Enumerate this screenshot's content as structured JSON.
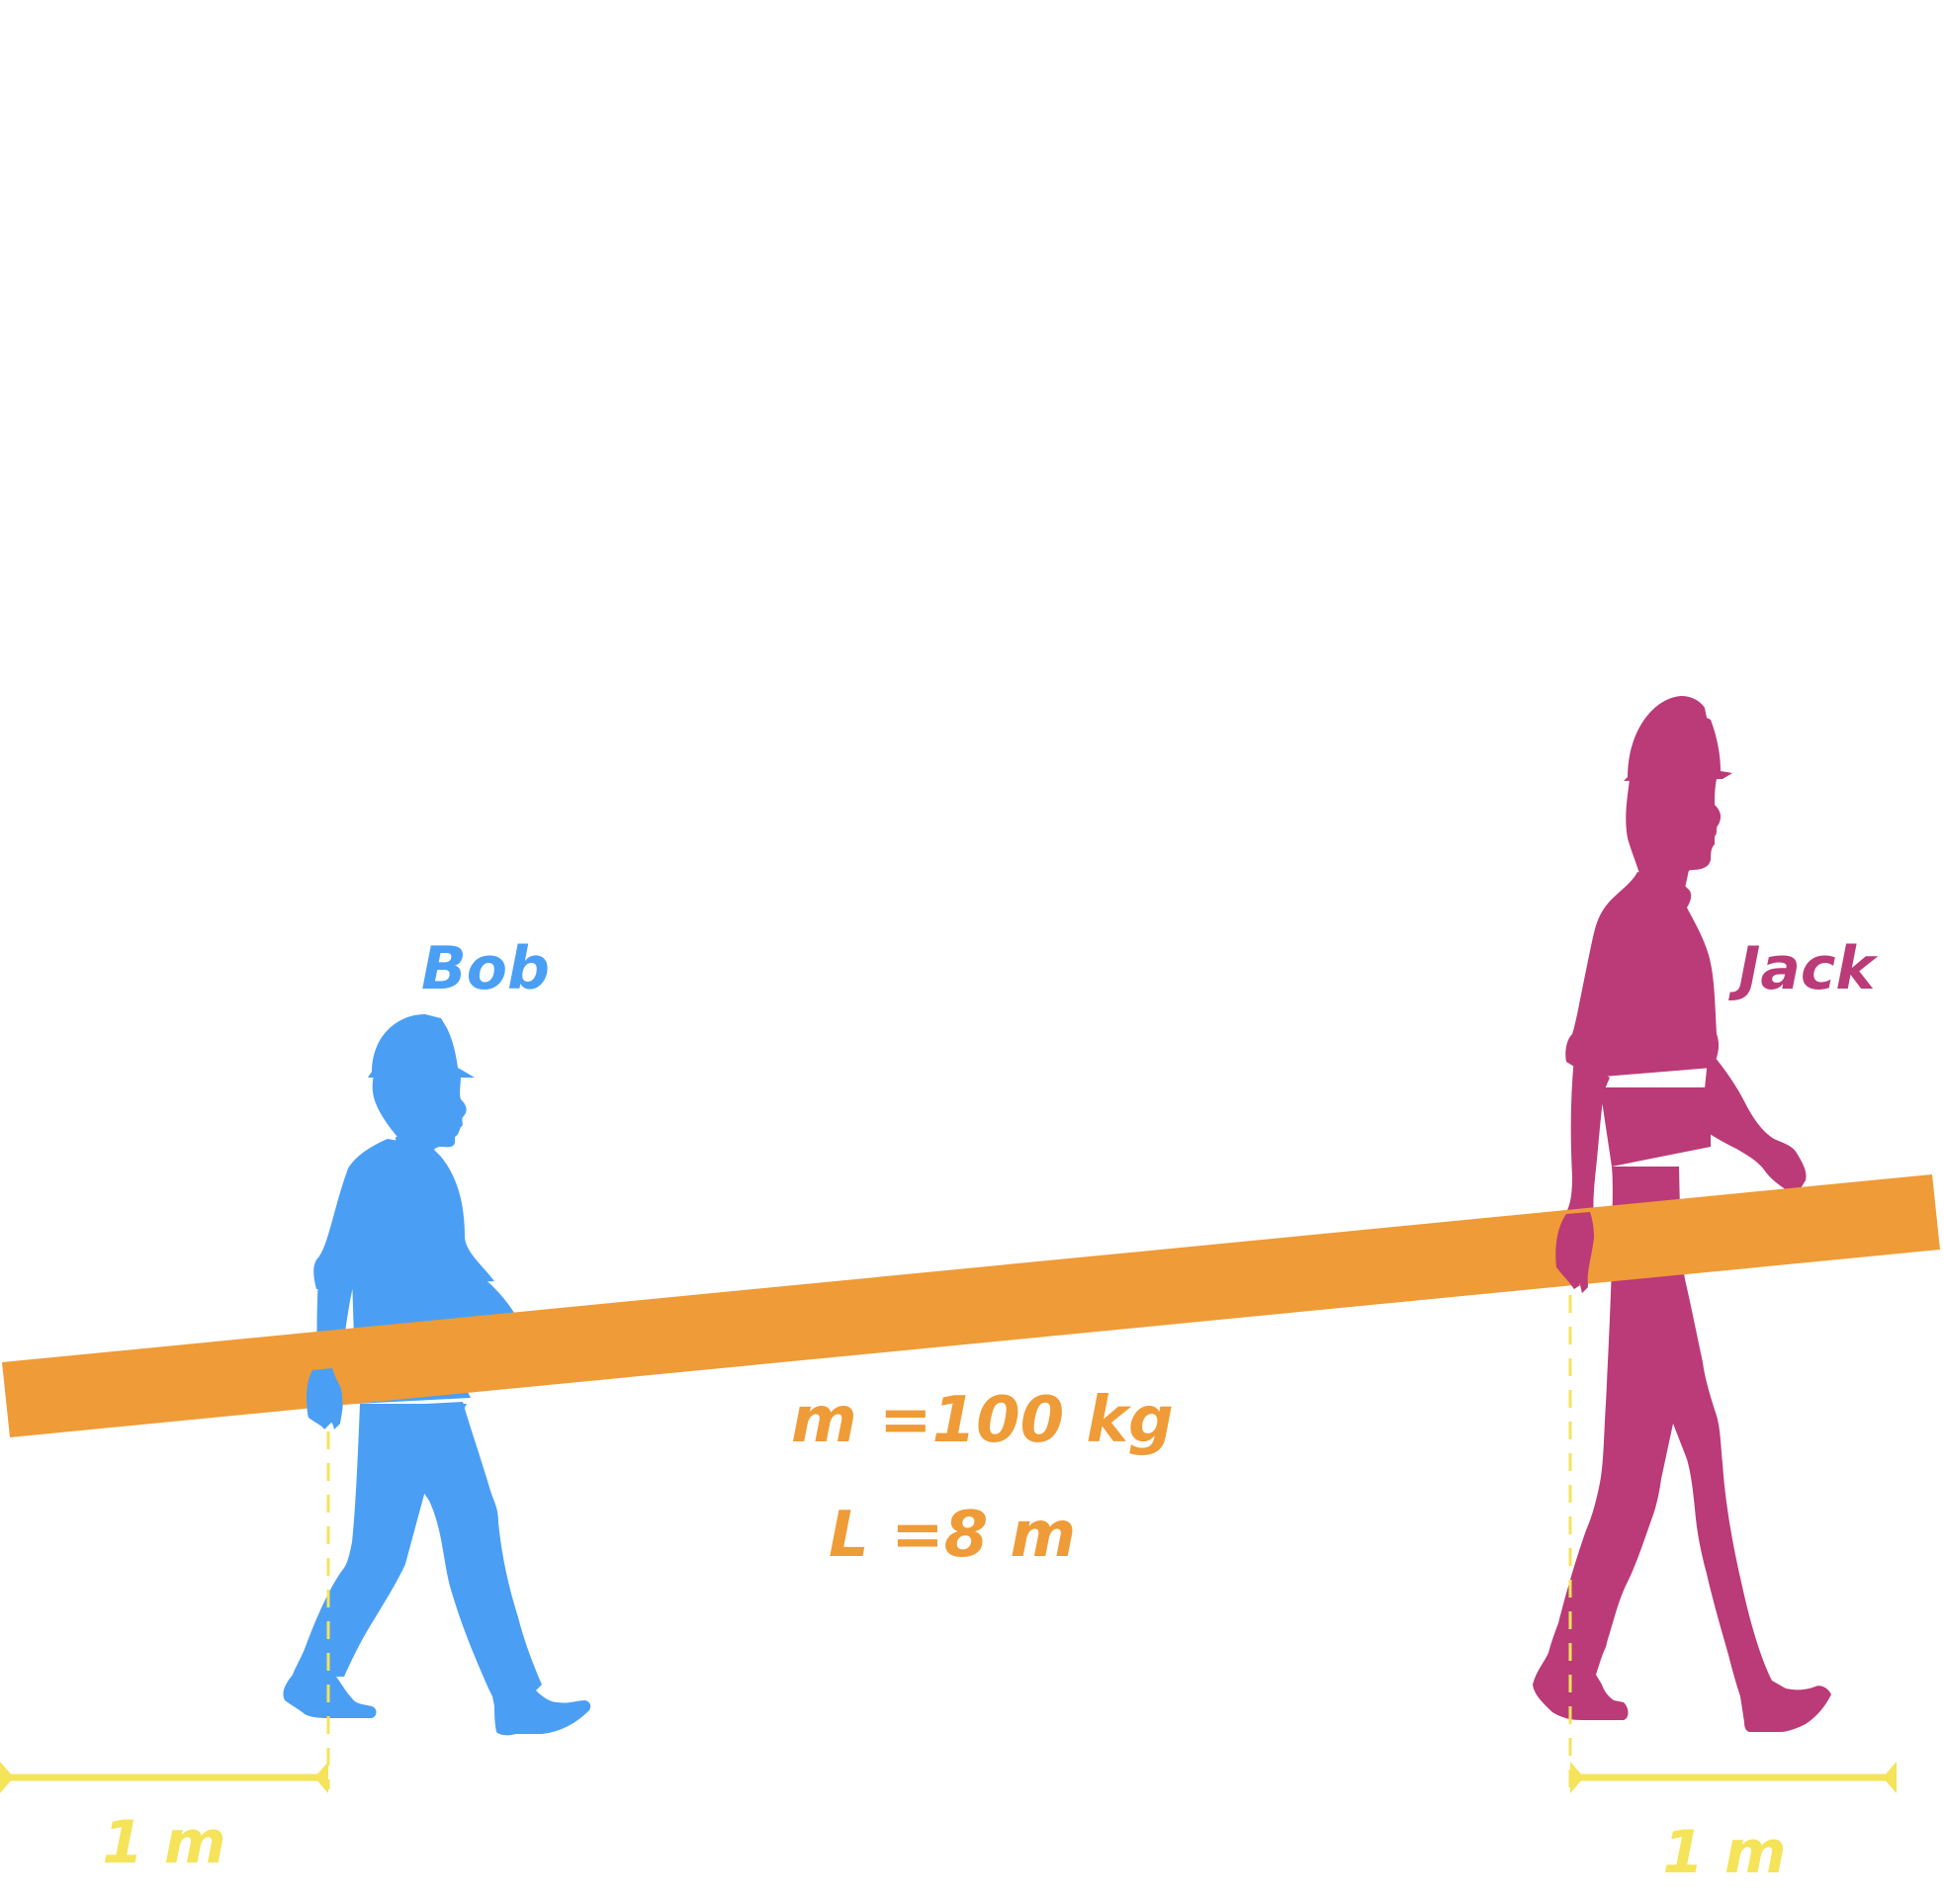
{
  "labels": {
    "person_left": "Bob",
    "person_right": "Jack",
    "mass": "m =100 kg",
    "length": "L =8 m",
    "distance_left": "1 m",
    "distance_right": "1 m"
  },
  "colors": {
    "background": "#ffffff",
    "bob": "#4a9ff5",
    "jack": "#bb3a78",
    "beam": "#ef9b37",
    "dimension": "#f5e35a"
  },
  "icons": {
    "left_figure": "walking-worker-hardhat-silhouette",
    "right_figure": "walking-worker-hardhat-silhouette"
  }
}
